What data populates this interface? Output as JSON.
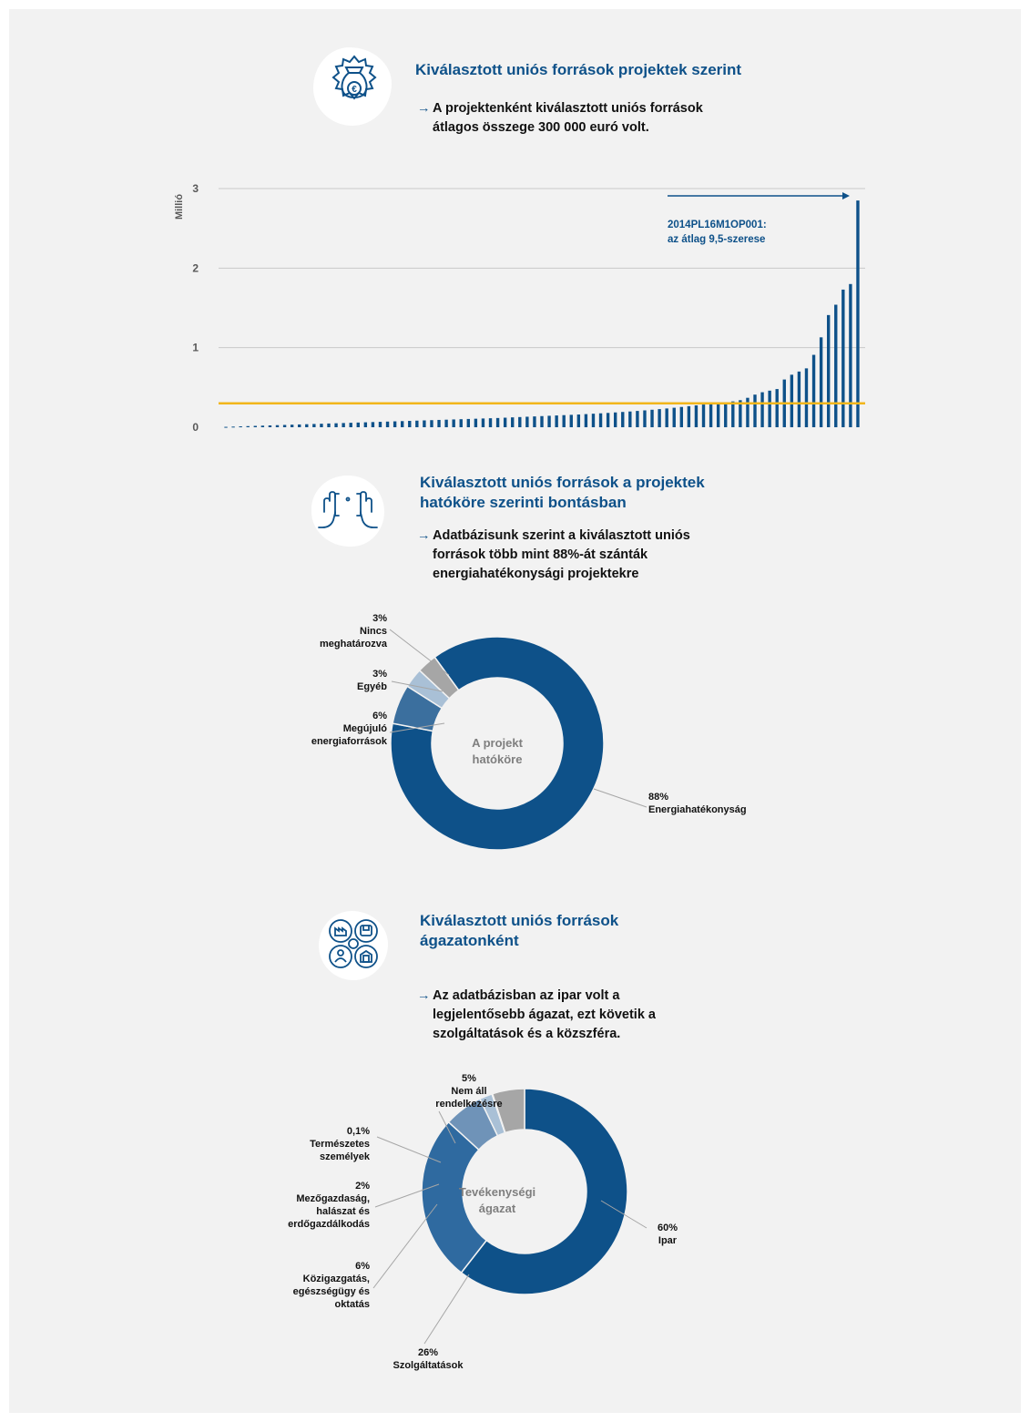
{
  "section1": {
    "icon": "euro-money-bag-gear-icon",
    "title": "Kiválasztott uniós források projektek szerint",
    "bullet": [
      "A projektenként kiválasztott uniós források",
      "átlagos összege 300 000 euró volt."
    ]
  },
  "section2": {
    "icon": "hands-framing-icon",
    "title": [
      "Kiválasztott uniós források a projektek",
      "hatóköre szerinti bontásban"
    ],
    "bullet": [
      "Adatbázisunk szerint a kiválasztott uniós",
      "források több mint 88%-át szánták",
      "energiahatékonysági projektekre"
    ]
  },
  "section3": {
    "icon": "sectors-gear-icon",
    "title": [
      "Kiválasztott uniós források",
      "ágazatonként"
    ],
    "bullet": [
      "Az adatbázisban az ipar volt a",
      "legjelentősebb ágazat, ezt követik a",
      "szolgáltatások és a közszféra."
    ]
  },
  "colors": {
    "brand": "#0e5189",
    "average_line": "#f2b61b",
    "grey_slice": "#a6a6a6",
    "light_slice": "#a9c0d6",
    "mid_slice": "#3b6f9e",
    "services_slice": "#2f6aa0"
  },
  "chart_data": [
    {
      "type": "bar",
      "ylabel": "Millió",
      "yticks": [
        "0",
        "1",
        "2",
        "3"
      ],
      "ylim": [
        0,
        3
      ],
      "grid": true,
      "average_line": 0.3,
      "annotation": [
        "2014PL16M1OP001:",
        "az átlag 9,5-szerese"
      ],
      "values": [
        0.005,
        0.008,
        0.011,
        0.014,
        0.017,
        0.02,
        0.023,
        0.026,
        0.029,
        0.032,
        0.035,
        0.038,
        0.041,
        0.044,
        0.047,
        0.05,
        0.053,
        0.056,
        0.059,
        0.062,
        0.065,
        0.068,
        0.071,
        0.074,
        0.077,
        0.08,
        0.083,
        0.086,
        0.089,
        0.092,
        0.095,
        0.098,
        0.101,
        0.104,
        0.107,
        0.11,
        0.113,
        0.116,
        0.12,
        0.124,
        0.128,
        0.132,
        0.136,
        0.14,
        0.144,
        0.148,
        0.152,
        0.156,
        0.16,
        0.165,
        0.17,
        0.175,
        0.18,
        0.186,
        0.192,
        0.198,
        0.205,
        0.212,
        0.22,
        0.228,
        0.236,
        0.245,
        0.255,
        0.265,
        0.275,
        0.285,
        0.295,
        0.305,
        0.315,
        0.325,
        0.34,
        0.37,
        0.41,
        0.44,
        0.46,
        0.48,
        0.6,
        0.66,
        0.7,
        0.74,
        0.91,
        1.13,
        1.41,
        1.54,
        1.73,
        1.8,
        2.85
      ]
    },
    {
      "type": "pie",
      "center_label": [
        "A projekt",
        "hatóköre"
      ],
      "slices": [
        {
          "label": [
            "Energiahatékonyság"
          ],
          "pct_text": "88%",
          "value": 88
        },
        {
          "label": [
            "Megújuló",
            "energiaforrások"
          ],
          "pct_text": "6%",
          "value": 6
        },
        {
          "label": [
            "Egyéb"
          ],
          "pct_text": "3%",
          "value": 3
        },
        {
          "label": [
            "Nincs",
            "meghatározva"
          ],
          "pct_text": "3%",
          "value": 3
        }
      ]
    },
    {
      "type": "pie",
      "center_label": [
        "Tevékenységi",
        "ágazat"
      ],
      "slices": [
        {
          "label": [
            "Ipar"
          ],
          "pct_text": "60%",
          "value": 60
        },
        {
          "label": [
            "Szolgáltatások"
          ],
          "pct_text": "26%",
          "value": 26
        },
        {
          "label": [
            "Közigazgatás,",
            "egészségügy és",
            "oktatás"
          ],
          "pct_text": "6%",
          "value": 6
        },
        {
          "label": [
            "Mezőgazdaság,",
            "halászat és",
            "erdőgazdálkodás"
          ],
          "pct_text": "2%",
          "value": 2
        },
        {
          "label": [
            "Természetes",
            "személyek"
          ],
          "pct_text": "0,1%",
          "value": 0.1
        },
        {
          "label": [
            "Nem áll",
            "rendelkezésre"
          ],
          "pct_text": "5%",
          "value": 5
        }
      ]
    }
  ]
}
